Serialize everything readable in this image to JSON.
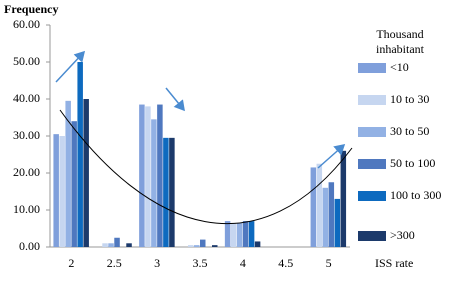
{
  "chart_data": {
    "type": "bar",
    "y_label": "Frequency",
    "x_label": "ISS rate",
    "legend_title": "Thousand inhabitant",
    "categories": [
      "2",
      "2.5",
      "3",
      "3.5",
      "4",
      "4.5",
      "5"
    ],
    "series": [
      {
        "name": "<10",
        "color": "#7f9fdb",
        "values": [
          30.5,
          0,
          38.5,
          0,
          7,
          0,
          21.5
        ]
      },
      {
        "name": "10 to 30",
        "color": "#c6d6f0",
        "values": [
          30,
          1,
          38,
          0.5,
          6.5,
          0,
          22.5
        ]
      },
      {
        "name": "30 to 50",
        "color": "#92b1e4",
        "values": [
          39.5,
          1,
          34.5,
          0.5,
          6.5,
          0,
          16
        ]
      },
      {
        "name": "50 to 100",
        "color": "#4f78bf",
        "values": [
          34,
          2.5,
          38.5,
          2,
          7,
          0,
          17.5
        ]
      },
      {
        "name": "100 to 300",
        "color": "#0d6abf",
        "values": [
          50,
          0,
          29.5,
          0,
          7,
          0,
          13
        ]
      },
      {
        "name": ">300",
        "color": "#1c3a6b",
        "values": [
          40,
          1,
          29.5,
          0.5,
          1.5,
          0,
          26
        ]
      }
    ],
    "ylim": [
      0,
      60
    ],
    "yticks": [
      {
        "value": 0,
        "label": "0.00"
      },
      {
        "value": 10,
        "label": "10.00"
      },
      {
        "value": 20,
        "label": "20.00"
      },
      {
        "value": 30,
        "label": "30.00"
      },
      {
        "value": 40,
        "label": "40.00"
      },
      {
        "value": 50,
        "label": "50.00"
      },
      {
        "value": 60,
        "label": "60.00"
      }
    ],
    "grid": false
  }
}
